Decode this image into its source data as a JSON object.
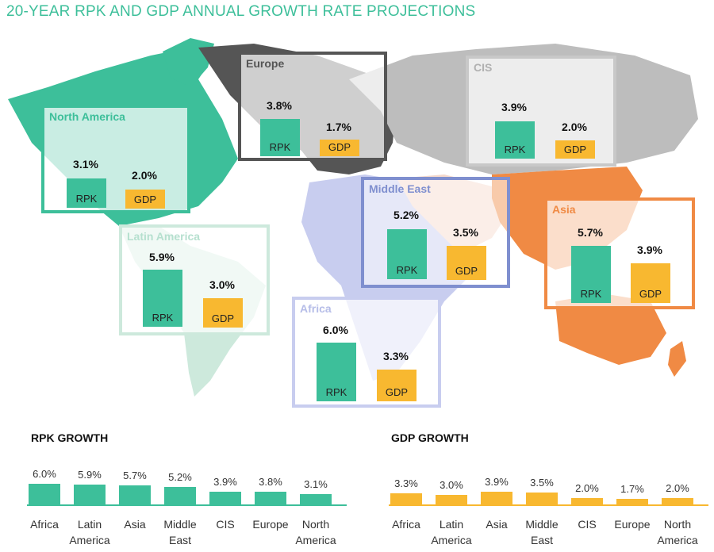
{
  "title": "20-YEAR RPK AND GDP ANNUAL GROWTH RATE PROJECTIONS",
  "colors": {
    "rpk": "#3dbf9a",
    "gdp": "#f8b830"
  },
  "bar_labels": {
    "rpk": "RPK",
    "gdp": "GDP"
  },
  "regions": [
    {
      "key": "north-america",
      "name": "North America",
      "rpk": "3.1%",
      "gdp": "2.0%",
      "color": "#3dbf9a"
    },
    {
      "key": "europe",
      "name": "Europe",
      "rpk": "3.8%",
      "gdp": "1.7%",
      "color": "#555555"
    },
    {
      "key": "cis",
      "name": "CIS",
      "rpk": "3.9%",
      "gdp": "2.0%",
      "color": "#bdbdbd"
    },
    {
      "key": "latin-america",
      "name": "Latin America",
      "rpk": "5.9%",
      "gdp": "3.0%",
      "color": "#cde9dc"
    },
    {
      "key": "middle-east",
      "name": "Middle East",
      "rpk": "5.2%",
      "gdp": "3.5%",
      "color": "#7f8fcf"
    },
    {
      "key": "asia",
      "name": "Asia",
      "rpk": "5.7%",
      "gdp": "3.9%",
      "color": "#f08a44"
    },
    {
      "key": "africa",
      "name": "Africa",
      "rpk": "6.0%",
      "gdp": "3.3%",
      "color": "#c8cdef"
    }
  ],
  "chart_data": [
    {
      "type": "bar",
      "title": "RPK GROWTH",
      "categories": [
        "Africa",
        "Latin America",
        "Asia",
        "Middle East",
        "CIS",
        "Europe",
        "North America"
      ],
      "values": [
        6.0,
        5.9,
        5.7,
        5.2,
        3.9,
        3.8,
        3.1
      ],
      "labels": [
        "6.0%",
        "5.9%",
        "5.7%",
        "5.2%",
        "3.9%",
        "3.8%",
        "3.1%"
      ],
      "color": "#3dbf9a"
    },
    {
      "type": "bar",
      "title": "GDP GROWTH",
      "categories": [
        "Africa",
        "Latin America",
        "Asia",
        "Middle East",
        "CIS",
        "Europe",
        "North America"
      ],
      "values": [
        3.3,
        3.0,
        3.9,
        3.5,
        2.0,
        1.7,
        2.0
      ],
      "labels": [
        "3.3%",
        "3.0%",
        "3.9%",
        "3.5%",
        "2.0%",
        "1.7%",
        "2.0%"
      ],
      "color": "#f8b830"
    }
  ]
}
